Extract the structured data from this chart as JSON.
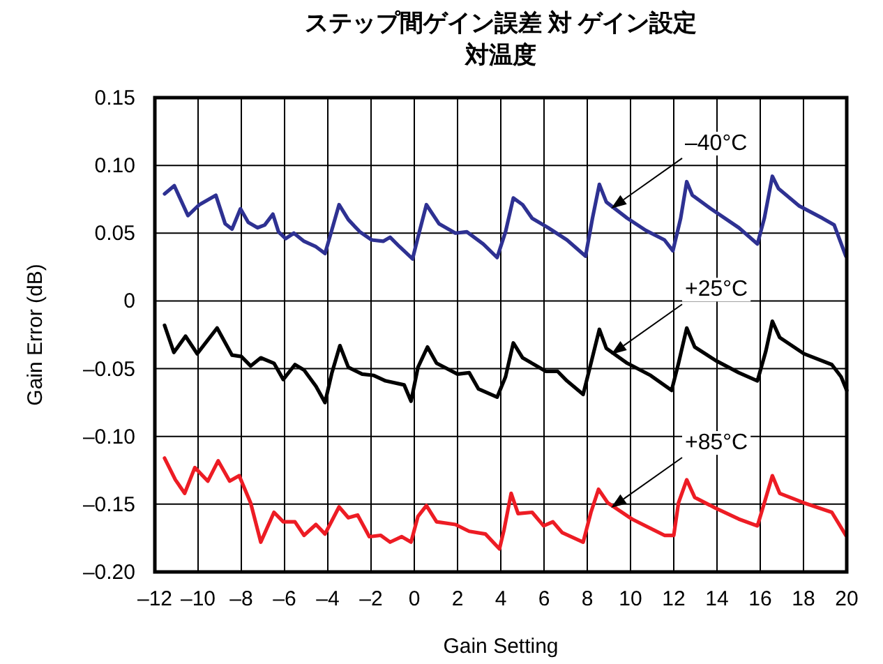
{
  "chart_data": {
    "type": "line",
    "title": "ステップ間ゲイン誤差 対 ゲイン設定",
    "subtitle": "対温度",
    "xlabel": "Gain Setting",
    "ylabel": "Gain Error (dB)",
    "xlim": [
      -12,
      20
    ],
    "ylim": [
      -0.2,
      0.15
    ],
    "grid": true,
    "xticks": [
      {
        "value": -12,
        "label": "–12"
      },
      {
        "value": -10,
        "label": "–10"
      },
      {
        "value": -8,
        "label": "–8"
      },
      {
        "value": -6,
        "label": "–6"
      },
      {
        "value": -4,
        "label": "–4"
      },
      {
        "value": -2,
        "label": "–2"
      },
      0,
      2,
      4,
      6,
      8,
      10,
      12,
      14,
      16,
      18,
      20
    ],
    "yticks": [
      {
        "value": -0.2,
        "label": "–0.20"
      },
      {
        "value": -0.15,
        "label": "–0.15"
      },
      {
        "value": -0.1,
        "label": "–0.10"
      },
      {
        "value": -0.05,
        "label": "–0.05"
      },
      0,
      {
        "value": 0.05,
        "label": "0.05"
      },
      {
        "value": 0.1,
        "label": "0.10"
      },
      {
        "value": 0.15,
        "label": "0.15"
      }
    ],
    "series": [
      {
        "name": "–40°C",
        "color": "#2e3192",
        "x": [
          -11.55,
          -11.1,
          -10.47,
          -9.94,
          -9.18,
          -8.75,
          -8.43,
          -8.04,
          -7.68,
          -7.25,
          -6.92,
          -6.54,
          -6.28,
          -5.95,
          -5.57,
          -5.1,
          -4.55,
          -4.13,
          -3.91,
          -3.48,
          -3.05,
          -2.52,
          -1.97,
          -1.44,
          -1.12,
          -0.68,
          -0.08,
          0.17,
          0.56,
          1.14,
          1.9,
          2.43,
          3.19,
          3.83,
          4.22,
          4.58,
          5.01,
          5.45,
          6.19,
          7.06,
          7.92,
          8.24,
          8.56,
          8.88,
          9.85,
          10.71,
          11.57,
          11.96,
          12.32,
          12.6,
          12.86,
          13.72,
          15.01,
          15.87,
          16.19,
          16.56,
          16.84,
          17.81,
          18.88,
          19.42,
          19.96
        ],
        "values": [
          0.079,
          0.085,
          0.063,
          0.071,
          0.078,
          0.057,
          0.053,
          0.068,
          0.058,
          0.054,
          0.056,
          0.064,
          0.051,
          0.046,
          0.05,
          0.044,
          0.04,
          0.035,
          0.047,
          0.071,
          0.06,
          0.051,
          0.045,
          0.044,
          0.047,
          0.04,
          0.031,
          0.047,
          0.071,
          0.057,
          0.05,
          0.051,
          0.042,
          0.032,
          0.051,
          0.076,
          0.071,
          0.061,
          0.054,
          0.045,
          0.033,
          0.061,
          0.086,
          0.073,
          0.061,
          0.052,
          0.045,
          0.037,
          0.061,
          0.088,
          0.078,
          0.068,
          0.054,
          0.042,
          0.061,
          0.092,
          0.083,
          0.07,
          0.061,
          0.056,
          0.033
        ]
      },
      {
        "name": "+25°C",
        "color": "#000000",
        "x": [
          -11.55,
          -11.12,
          -10.58,
          -10.04,
          -9.12,
          -8.43,
          -8.0,
          -7.57,
          -7.1,
          -6.49,
          -6.06,
          -5.52,
          -5.1,
          -4.55,
          -4.13,
          -3.81,
          -3.44,
          -3.05,
          -2.41,
          -1.87,
          -1.33,
          -0.47,
          -0.15,
          0.17,
          0.61,
          1.03,
          2.0,
          2.54,
          2.97,
          3.83,
          4.22,
          4.58,
          5.01,
          5.55,
          6.09,
          6.63,
          7.06,
          7.81,
          8.17,
          8.56,
          8.88,
          9.85,
          10.93,
          11.9,
          12.22,
          12.6,
          12.97,
          13.94,
          15.01,
          15.87,
          16.26,
          16.56,
          16.9,
          18.02,
          19.31,
          19.74,
          20
        ],
        "values": [
          -0.018,
          -0.038,
          -0.026,
          -0.039,
          -0.02,
          -0.04,
          -0.041,
          -0.048,
          -0.042,
          -0.046,
          -0.058,
          -0.047,
          -0.051,
          -0.063,
          -0.075,
          -0.053,
          -0.033,
          -0.049,
          -0.054,
          -0.055,
          -0.059,
          -0.062,
          -0.074,
          -0.049,
          -0.034,
          -0.046,
          -0.054,
          -0.053,
          -0.065,
          -0.071,
          -0.056,
          -0.031,
          -0.042,
          -0.047,
          -0.052,
          -0.052,
          -0.059,
          -0.069,
          -0.046,
          -0.021,
          -0.035,
          -0.046,
          -0.055,
          -0.066,
          -0.046,
          -0.02,
          -0.034,
          -0.044,
          -0.053,
          -0.059,
          -0.037,
          -0.015,
          -0.027,
          -0.039,
          -0.047,
          -0.056,
          -0.066
        ]
      },
      {
        "name": "+85°C",
        "color": "#ed1c24",
        "x": [
          -11.55,
          -11.05,
          -10.62,
          -10.15,
          -9.55,
          -9.07,
          -8.54,
          -8.1,
          -7.57,
          -7.1,
          -6.49,
          -6.06,
          -5.52,
          -5.1,
          -4.55,
          -4.13,
          -3.48,
          -3.05,
          -2.62,
          -2.08,
          -1.55,
          -1.12,
          -0.58,
          -0.15,
          0.17,
          0.56,
          1.03,
          1.9,
          2.54,
          3.29,
          3.94,
          4.15,
          4.48,
          4.8,
          5.45,
          5.98,
          6.41,
          6.84,
          7.81,
          8.17,
          8.52,
          8.95,
          10.07,
          11.57,
          12.0,
          12.22,
          12.6,
          12.97,
          13.94,
          15.01,
          15.87,
          16.19,
          16.56,
          16.9,
          18.02,
          19.31,
          19.96
        ],
        "values": [
          -0.116,
          -0.132,
          -0.142,
          -0.123,
          -0.133,
          -0.118,
          -0.133,
          -0.129,
          -0.149,
          -0.178,
          -0.156,
          -0.163,
          -0.163,
          -0.173,
          -0.165,
          -0.172,
          -0.152,
          -0.16,
          -0.158,
          -0.174,
          -0.173,
          -0.178,
          -0.174,
          -0.178,
          -0.159,
          -0.151,
          -0.163,
          -0.165,
          -0.17,
          -0.172,
          -0.183,
          -0.169,
          -0.142,
          -0.157,
          -0.156,
          -0.166,
          -0.163,
          -0.171,
          -0.178,
          -0.156,
          -0.139,
          -0.149,
          -0.161,
          -0.173,
          -0.173,
          -0.149,
          -0.132,
          -0.145,
          -0.153,
          -0.161,
          -0.166,
          -0.149,
          -0.129,
          -0.142,
          -0.149,
          -0.156,
          -0.173
        ]
      }
    ]
  }
}
